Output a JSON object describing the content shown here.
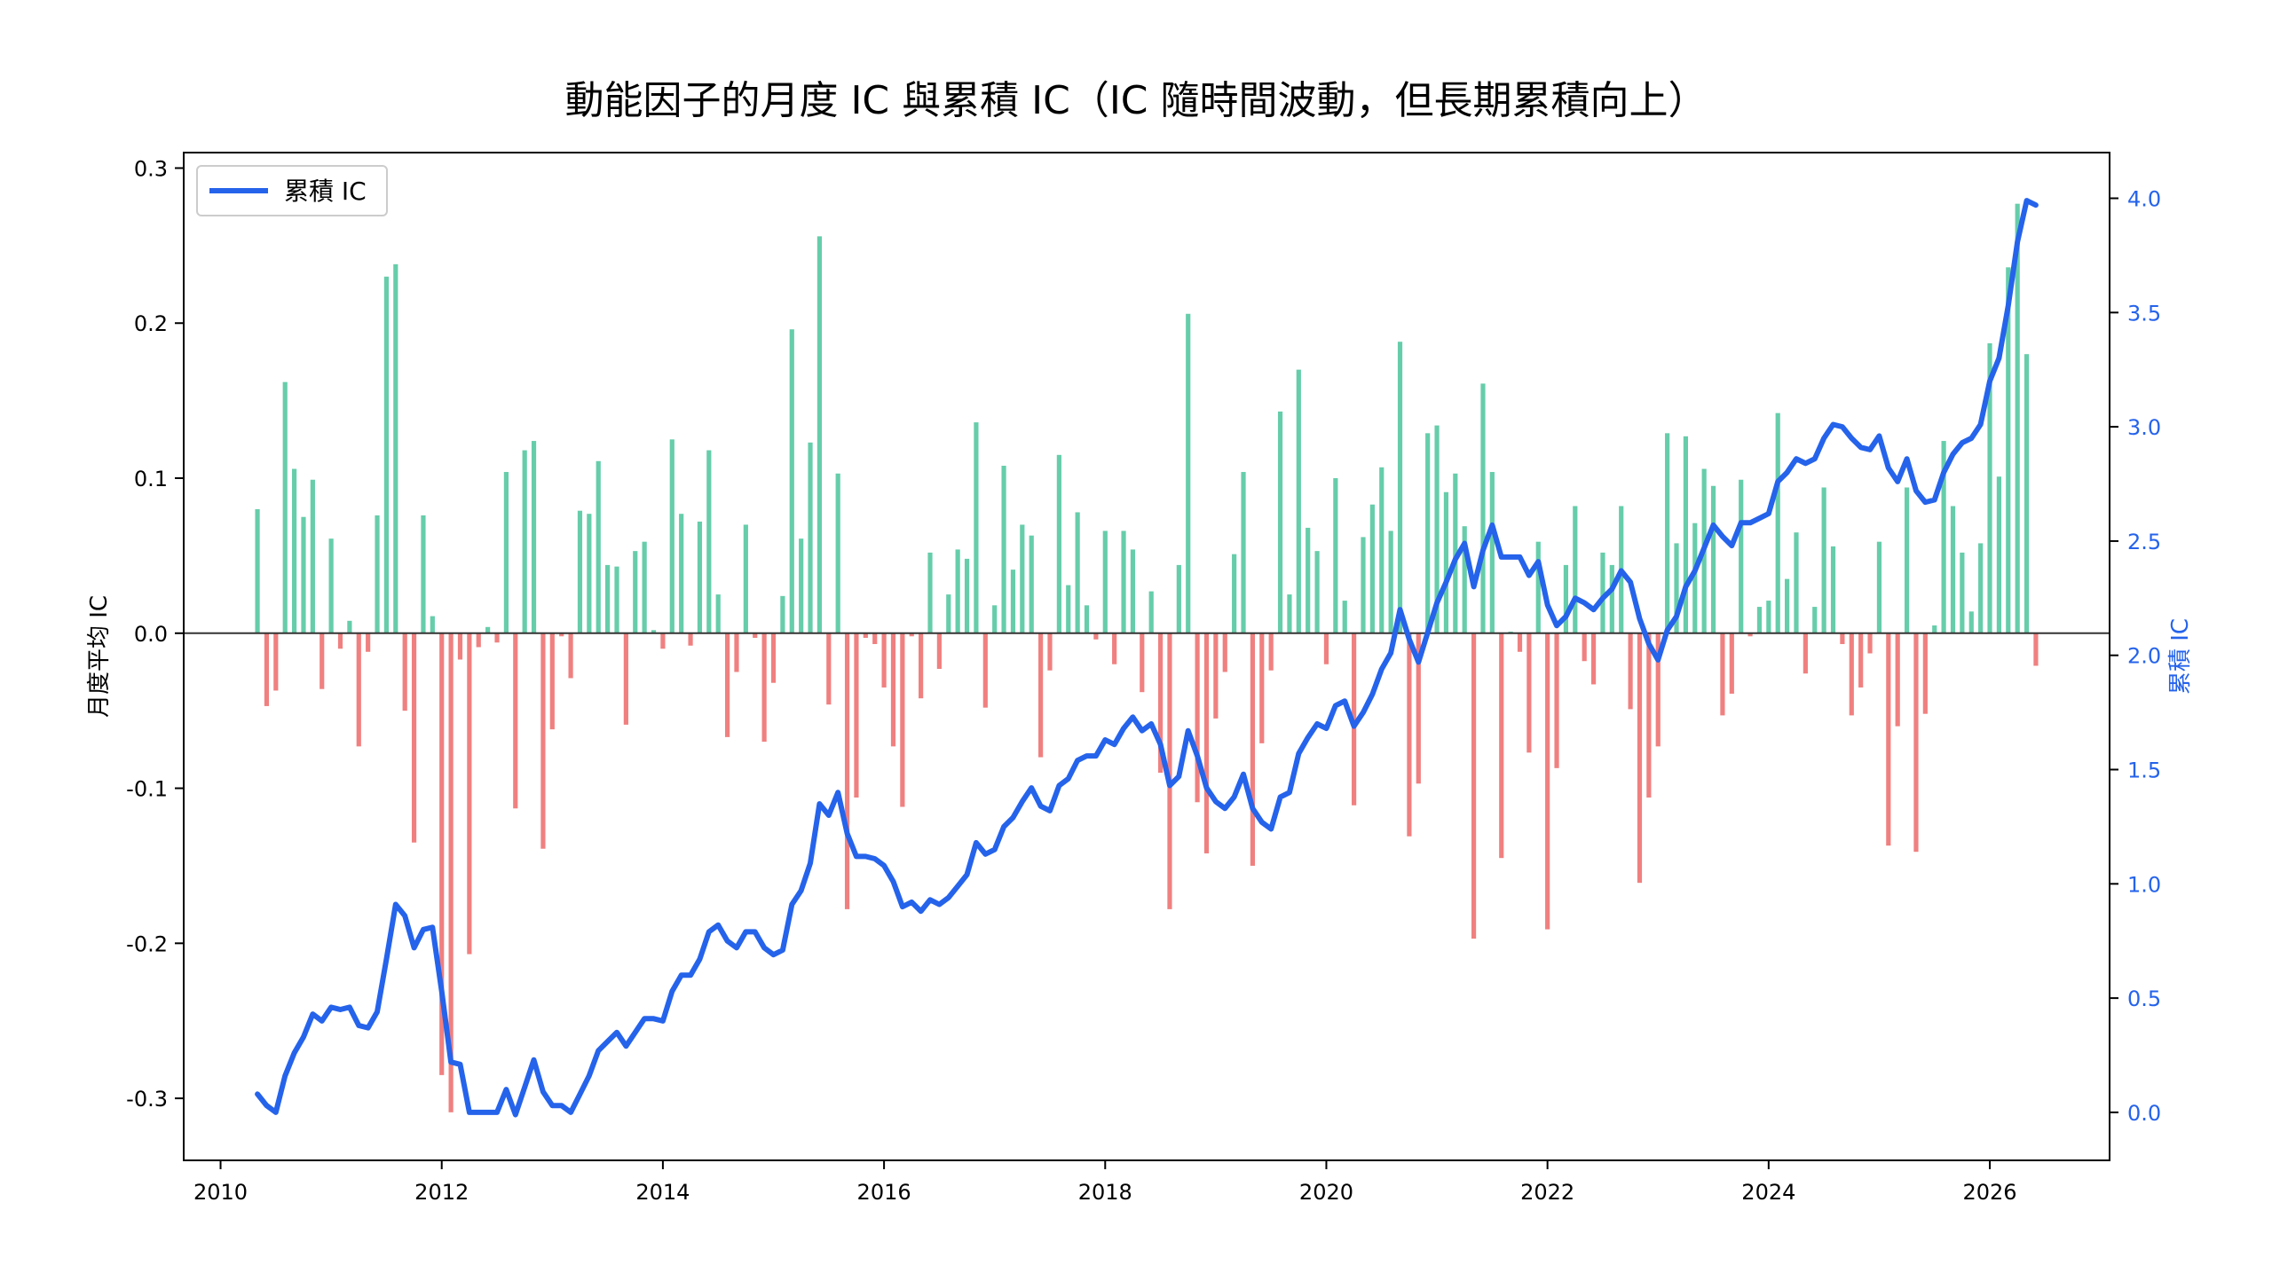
{
  "chart_data": {
    "type": "bar+line",
    "title": "動能因子的月度 IC 與累積 IC（IC 隨時間波動，但長期累積向上）",
    "xlabel": "",
    "ylabel_left": "月度平均 IC",
    "ylabel_right": "累積 IC",
    "x_ticks": [
      "2010",
      "2012",
      "2014",
      "2016",
      "2018",
      "2020",
      "2022",
      "2024",
      "2026"
    ],
    "y_left_ticks": [
      "0.3",
      "0.2",
      "0.1",
      "0.0",
      "-0.1",
      "-0.2",
      "-0.3"
    ],
    "y_right_ticks": [
      "4.0",
      "3.5",
      "3.0",
      "2.5",
      "2.0",
      "1.5",
      "1.0",
      "0.5",
      "0.0"
    ],
    "ylim_left": [
      -0.34,
      0.31
    ],
    "ylim_right": [
      -0.21,
      4.2
    ],
    "xlim": [
      "2009-09",
      "2027-02"
    ],
    "grid": false,
    "legend": {
      "position": "top-left",
      "entries": [
        "累積 IC"
      ]
    },
    "start_month": "2010-05",
    "monthly_ic": [
      0.08,
      -0.047,
      -0.037,
      0.162,
      0.106,
      0.075,
      0.099,
      -0.036,
      0.061,
      -0.01,
      0.008,
      -0.073,
      -0.012,
      0.076,
      0.23,
      0.238,
      -0.05,
      -0.135,
      0.076,
      0.011,
      -0.285,
      -0.309,
      -0.017,
      -0.207,
      -0.009,
      0.004,
      -0.006,
      0.104,
      -0.113,
      0.118,
      0.124,
      -0.139,
      -0.062,
      -0.002,
      -0.029,
      0.079,
      0.077,
      0.111,
      0.044,
      0.043,
      -0.059,
      0.053,
      0.059,
      0.002,
      -0.01,
      0.125,
      0.077,
      -0.008,
      0.072,
      0.118,
      0.025,
      -0.067,
      -0.025,
      0.07,
      -0.003,
      -0.07,
      -0.032,
      0.024,
      0.196,
      0.061,
      0.123,
      0.256,
      -0.046,
      0.103,
      -0.178,
      -0.106,
      -0.003,
      -0.007,
      -0.035,
      -0.073,
      -0.112,
      -0.002,
      -0.042,
      0.052,
      -0.023,
      0.025,
      0.054,
      0.048,
      0.136,
      -0.048,
      0.018,
      0.108,
      0.041,
      0.07,
      0.063,
      -0.08,
      -0.024,
      0.115,
      0.031,
      0.078,
      0.018,
      -0.004,
      0.066,
      -0.02,
      0.066,
      0.054,
      -0.038,
      0.027,
      -0.09,
      -0.178,
      0.044,
      0.206,
      -0.109,
      -0.142,
      -0.055,
      -0.025,
      0.051,
      0.104,
      -0.15,
      -0.071,
      -0.024,
      0.143,
      0.025,
      0.17,
      0.068,
      0.053,
      -0.02,
      0.1,
      0.021,
      -0.111,
      0.062,
      0.083,
      0.107,
      0.066,
      0.188,
      -0.131,
      -0.097,
      0.129,
      0.134,
      0.091,
      0.103,
      0.069,
      -0.197,
      0.161,
      0.104,
      -0.145,
      0.001,
      -0.012,
      -0.077,
      0.059,
      -0.191,
      -0.087,
      0.044,
      0.082,
      -0.018,
      -0.033,
      0.052,
      0.044,
      0.082,
      -0.049,
      -0.161,
      -0.106,
      -0.073,
      0.129,
      0.058,
      0.127,
      0.071,
      0.106,
      0.095,
      -0.053,
      -0.039,
      0.099,
      -0.002,
      0.017,
      0.021,
      0.142,
      0.035,
      0.065,
      -0.026,
      0.017,
      0.094,
      0.056,
      -0.007,
      -0.053,
      -0.035,
      -0.013,
      0.059,
      -0.137,
      -0.06,
      0.094,
      -0.141,
      -0.052,
      0.005,
      0.124,
      0.082,
      0.052,
      0.014,
      0.058,
      0.187,
      0.101,
      0.236,
      0.277,
      0.18,
      -0.021
    ],
    "cumulative_ic": [
      0.08,
      0.03,
      0.0,
      0.16,
      0.26,
      0.33,
      0.43,
      0.4,
      0.46,
      0.45,
      0.46,
      0.38,
      0.37,
      0.44,
      0.67,
      0.91,
      0.86,
      0.72,
      0.8,
      0.81,
      0.53,
      0.22,
      0.21,
      0.0,
      0.0,
      0.0,
      0.0,
      0.1,
      -0.01,
      0.11,
      0.23,
      0.09,
      0.03,
      0.03,
      0.0,
      0.08,
      0.16,
      0.27,
      0.31,
      0.35,
      0.29,
      0.35,
      0.41,
      0.41,
      0.4,
      0.53,
      0.6,
      0.6,
      0.67,
      0.79,
      0.82,
      0.75,
      0.72,
      0.79,
      0.79,
      0.72,
      0.69,
      0.71,
      0.91,
      0.97,
      1.09,
      1.35,
      1.3,
      1.4,
      1.22,
      1.12,
      1.12,
      1.11,
      1.08,
      1.01,
      0.9,
      0.92,
      0.88,
      0.93,
      0.91,
      0.94,
      0.99,
      1.04,
      1.18,
      1.13,
      1.15,
      1.25,
      1.29,
      1.36,
      1.42,
      1.34,
      1.32,
      1.43,
      1.46,
      1.54,
      1.56,
      1.56,
      1.63,
      1.61,
      1.68,
      1.73,
      1.67,
      1.7,
      1.61,
      1.43,
      1.47,
      1.67,
      1.56,
      1.42,
      1.36,
      1.33,
      1.38,
      1.48,
      1.33,
      1.27,
      1.24,
      1.38,
      1.4,
      1.57,
      1.64,
      1.7,
      1.68,
      1.78,
      1.8,
      1.69,
      1.75,
      1.83,
      1.94,
      2.01,
      2.2,
      2.07,
      1.97,
      2.1,
      2.23,
      2.32,
      2.42,
      2.49,
      2.3,
      2.46,
      2.57,
      2.43,
      2.43,
      2.43,
      2.35,
      2.41,
      2.22,
      2.13,
      2.17,
      2.25,
      2.23,
      2.2,
      2.25,
      2.29,
      2.37,
      2.32,
      2.16,
      2.05,
      1.98,
      2.11,
      2.17,
      2.3,
      2.37,
      2.47,
      2.57,
      2.52,
      2.48,
      2.58,
      2.58,
      2.6,
      2.62,
      2.76,
      2.8,
      2.86,
      2.84,
      2.86,
      2.95,
      3.01,
      3.0,
      2.95,
      2.91,
      2.9,
      2.96,
      2.82,
      2.76,
      2.86,
      2.72,
      2.67,
      2.68,
      2.8,
      2.88,
      2.93,
      2.95,
      3.01,
      3.2,
      3.3,
      3.53,
      3.81,
      3.99,
      3.97
    ]
  },
  "colors": {
    "positive_bar": "#66cdaa",
    "negative_bar": "#f08080",
    "line": "#2563eb",
    "axis": "#000000",
    "zero_line": "#333333",
    "right_axis_text": "#2563eb"
  }
}
